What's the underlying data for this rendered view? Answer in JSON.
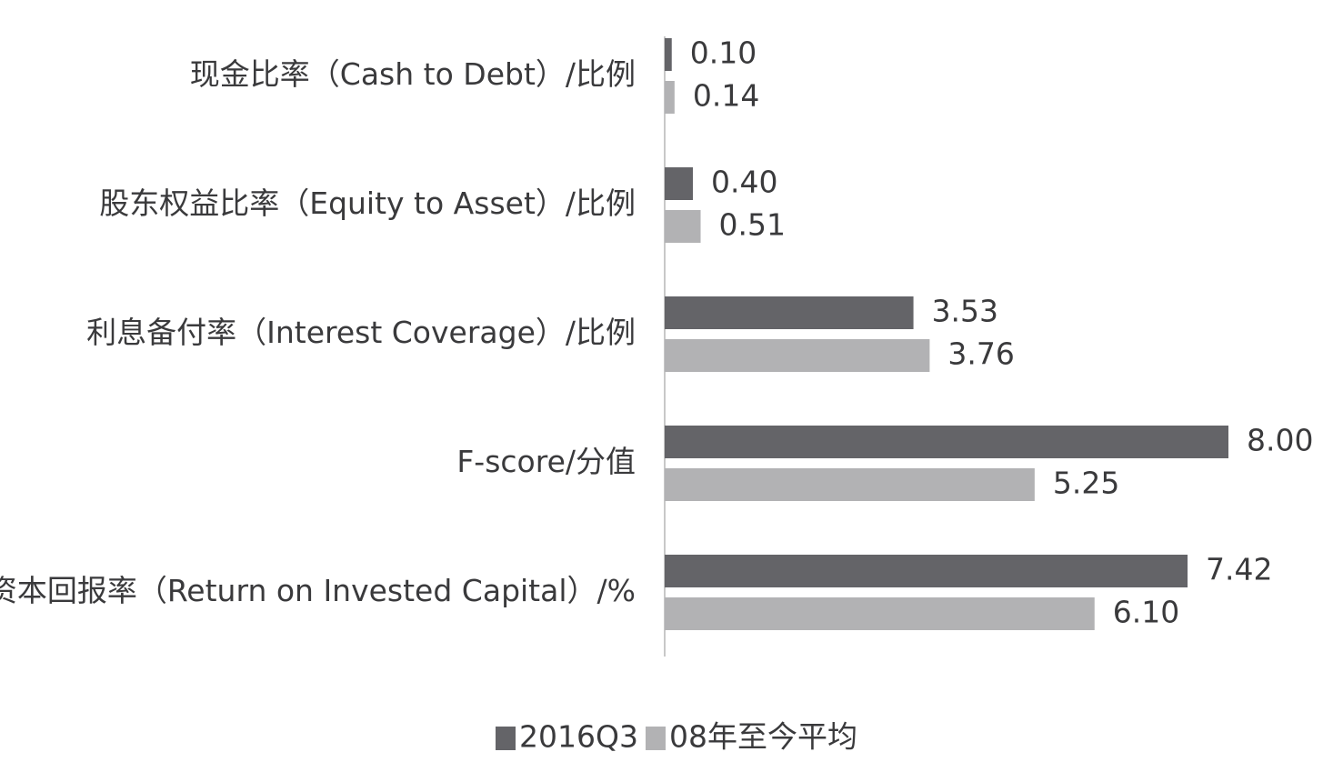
{
  "chart_data": {
    "type": "bar",
    "orientation": "horizontal",
    "categories": [
      "现金比率（Cash to Debt）/比例",
      "股东权益比率（Equity to Asset）/比例",
      "利息备付率（Interest Coverage）/比例",
      "F-score/分值",
      "投资资本回报率（Return on Invested Capital）/%"
    ],
    "series": [
      {
        "name": "2016Q3",
        "color": "#646468",
        "values": [
          0.1,
          0.4,
          3.53,
          8.0,
          7.42
        ],
        "labels": [
          "0.10",
          "0.40",
          "3.53",
          "8.00",
          "7.42"
        ]
      },
      {
        "name": "08年至今平均",
        "color": "#b2b2b4",
        "values": [
          0.14,
          0.51,
          3.76,
          5.25,
          6.1
        ],
        "labels": [
          "0.14",
          "0.51",
          "3.76",
          "5.25",
          "6.10"
        ]
      }
    ],
    "title": "",
    "xlabel": "",
    "ylabel": "",
    "xlim": [
      0,
      8.0
    ],
    "grid": false,
    "legend_position": "bottom-center"
  },
  "colors": {
    "axis": "#c8c8c8",
    "text": "#3a3a3c"
  }
}
